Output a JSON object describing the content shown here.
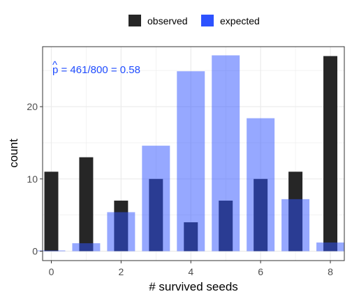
{
  "chart_data": {
    "type": "bar",
    "xlabel": "# survived seeds",
    "ylabel": "count",
    "x": [
      0,
      1,
      2,
      3,
      4,
      5,
      6,
      7,
      8
    ],
    "xticks": [
      0,
      2,
      4,
      6,
      8
    ],
    "yticks": [
      0,
      10,
      20
    ],
    "xlim": [
      -0.25,
      8.4
    ],
    "ylim": [
      -1.3,
      28.3
    ],
    "grid": true,
    "legend_position": "top",
    "series": [
      {
        "name": "observed",
        "values": [
          11,
          13,
          7,
          10,
          4,
          7,
          10,
          11,
          27
        ],
        "color": "#262626"
      },
      {
        "name": "expected",
        "values": [
          0.1,
          1.1,
          5.4,
          14.6,
          24.9,
          27.1,
          18.4,
          7.2,
          1.2
        ],
        "color": "#2d52ff"
      }
    ],
    "annotation": {
      "hat_glyph": "^",
      "text": "p = 461/800 = 0.58"
    }
  }
}
